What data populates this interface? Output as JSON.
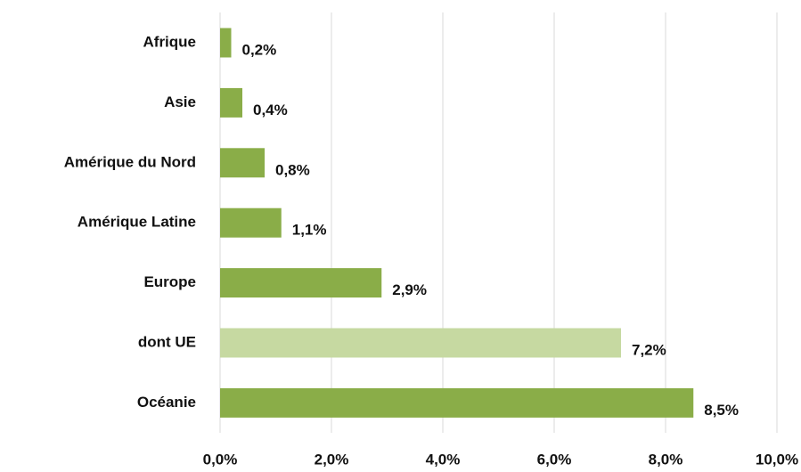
{
  "chart_data": {
    "type": "hbar",
    "categories": [
      "Afrique",
      "Asie",
      "Amérique du Nord",
      "Amérique Latine",
      "Europe",
      "dont UE",
      "Océanie"
    ],
    "values": [
      0.2,
      0.4,
      0.8,
      1.1,
      2.9,
      7.2,
      8.5
    ],
    "value_labels": [
      "0,2%",
      "0,4%",
      "0,8%",
      "1,1%",
      "2,9%",
      "7,2%",
      "8,5%"
    ],
    "colors": [
      "#8aad48",
      "#8aad48",
      "#8aad48",
      "#8aad48",
      "#8aad48",
      "#c6d9a1",
      "#8aad48"
    ],
    "xlim": [
      0,
      10
    ],
    "xticks": [
      {
        "value": 0,
        "label": "0,0%"
      },
      {
        "value": 2,
        "label": "2,0%"
      },
      {
        "value": 4,
        "label": "4,0%"
      },
      {
        "value": 6,
        "label": "6,0%"
      },
      {
        "value": 8,
        "label": "8,0%"
      },
      {
        "value": 10,
        "label": "10,0%"
      }
    ],
    "grid": true
  }
}
